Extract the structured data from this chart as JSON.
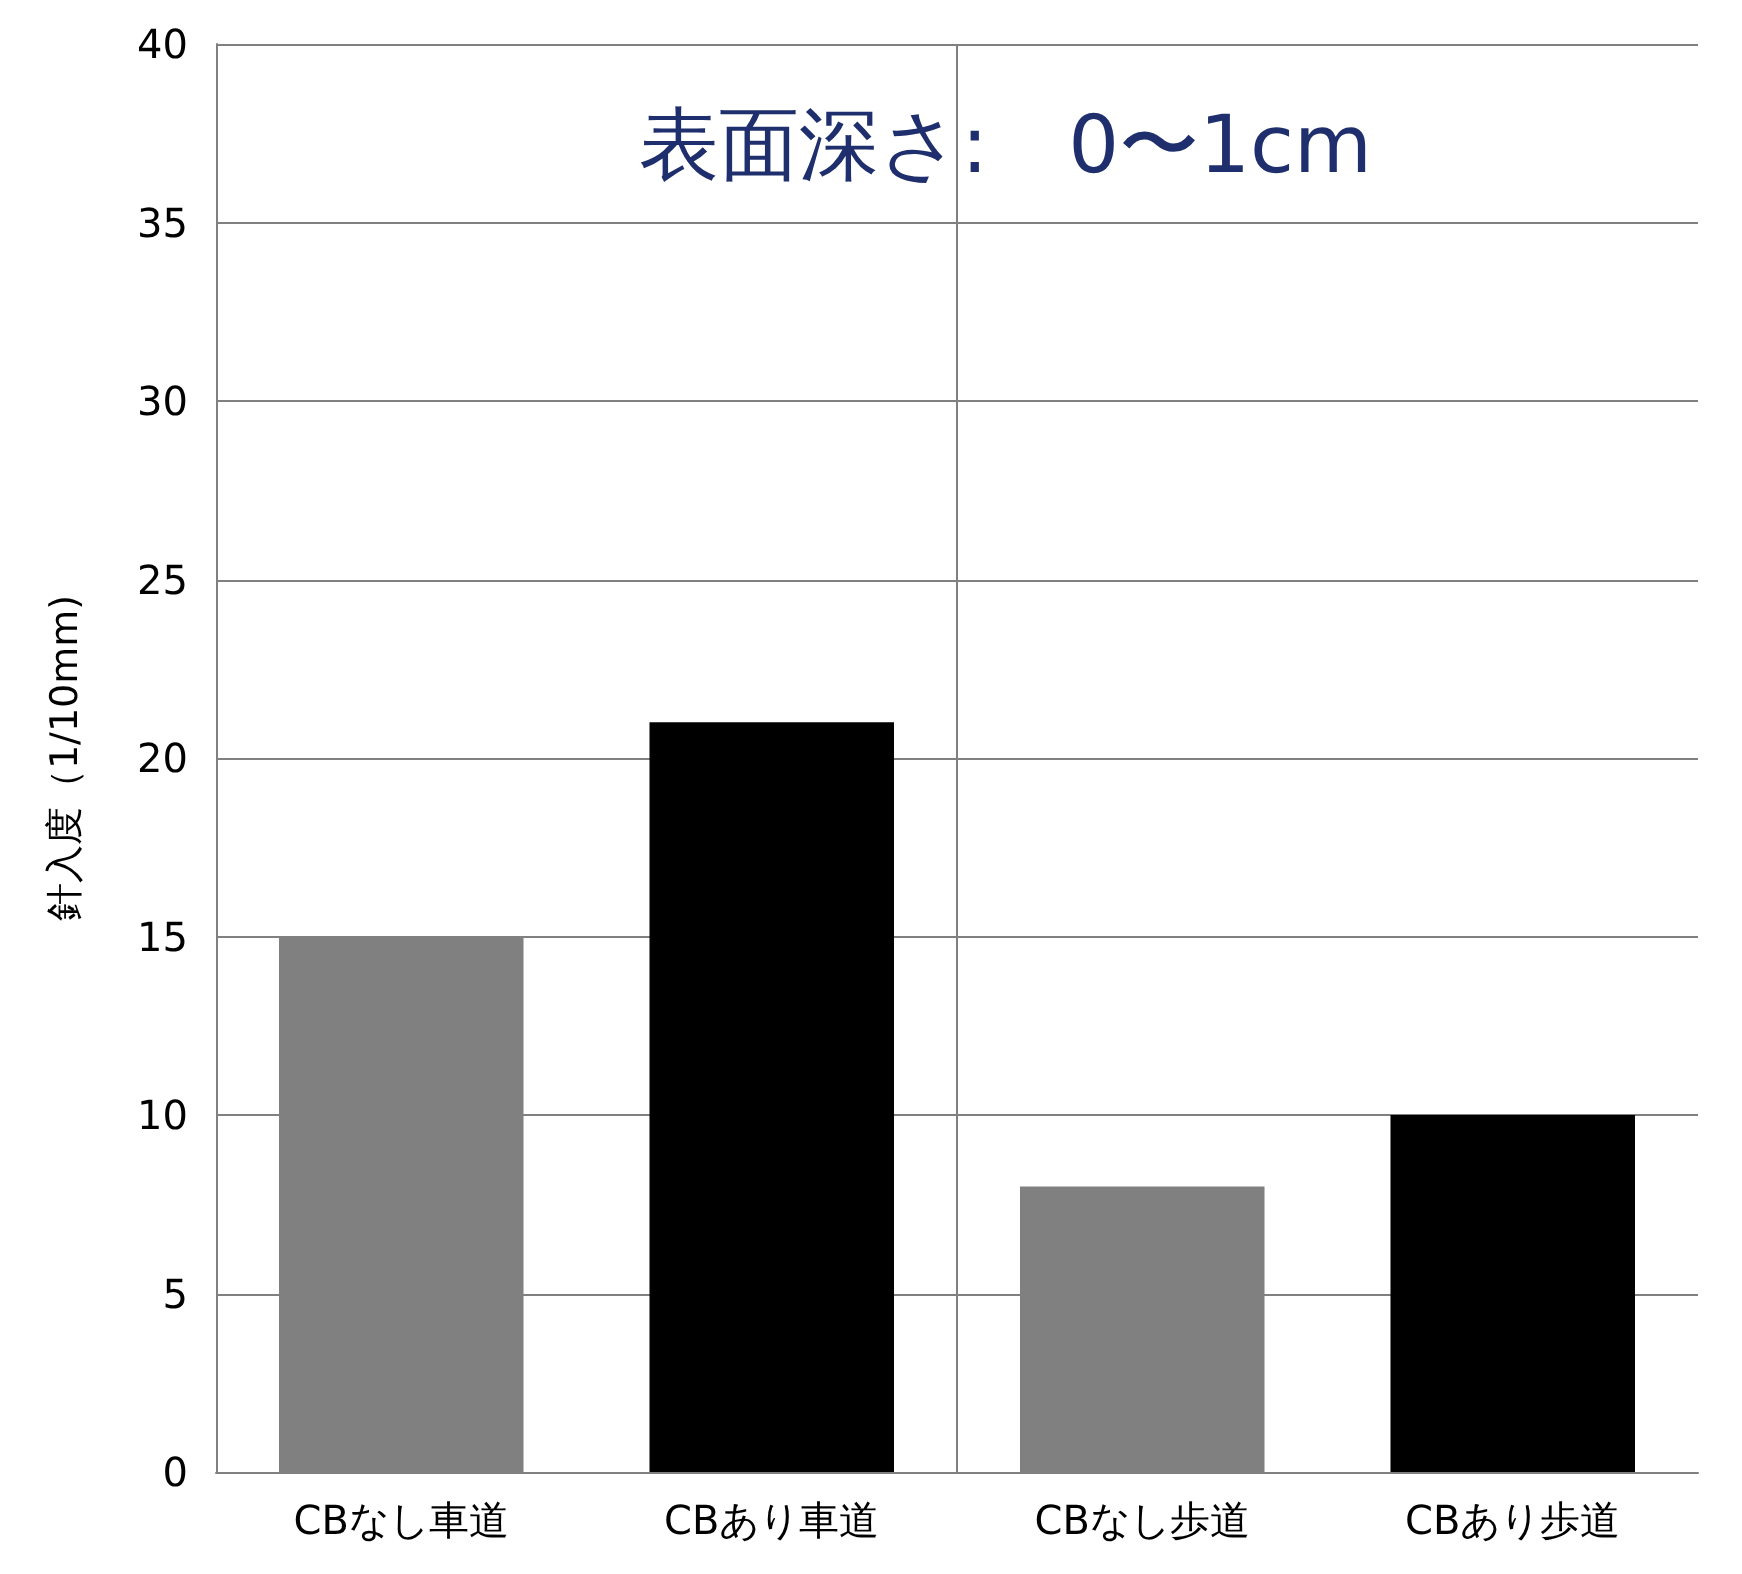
{
  "chart_data": {
    "type": "bar",
    "title": "表面深さ:　0〜1cm",
    "ylabel": "針入度（1/10mm)",
    "categories": [
      "CBなし車道",
      "CBあり車道",
      "CBなし歩道",
      "CBあり歩道"
    ],
    "values": [
      15,
      21,
      8,
      10
    ],
    "colors": [
      "#808080",
      "#000000",
      "#808080",
      "#000000"
    ],
    "ylim": [
      0,
      40
    ],
    "yticks": [
      0,
      5,
      10,
      15,
      20,
      25,
      30,
      35,
      40
    ],
    "grid": "y"
  }
}
